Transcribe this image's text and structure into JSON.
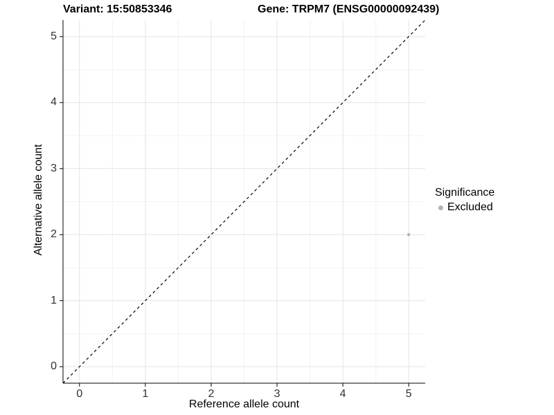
{
  "chart_data": {
    "type": "scatter",
    "title_left": "Variant: 15:50853346",
    "title_right": "Gene: TRPM7 (ENSG00000092439)",
    "xlabel": "Reference allele count",
    "ylabel": "Alternative allele count",
    "xlim": [
      -0.25,
      5.25
    ],
    "ylim": [
      -0.25,
      5.25
    ],
    "xticks": [
      0,
      1,
      2,
      3,
      4,
      5
    ],
    "yticks": [
      0,
      1,
      2,
      3,
      4,
      5
    ],
    "grid": true,
    "minor_grid": true,
    "points": [
      {
        "x": 5,
        "y": 2,
        "series": "Excluded"
      }
    ],
    "reference_line": {
      "shape": "diagonal y=x",
      "style": "dashed",
      "from": [
        -0.25,
        -0.25
      ],
      "to": [
        5.25,
        5.25
      ]
    },
    "legend": {
      "title": "Significance",
      "position": "right",
      "entries": [
        {
          "label": "Excluded",
          "color": "#b3b3b3",
          "marker": "circle"
        }
      ]
    },
    "colors": {
      "point": "#b3b3b3",
      "major_grid": "#e3e3e3",
      "minor_grid": "#f1f1f1",
      "axis_line": "#000000",
      "reference_line": "#000000",
      "tick_label": "#303030",
      "title": "#000000"
    }
  }
}
